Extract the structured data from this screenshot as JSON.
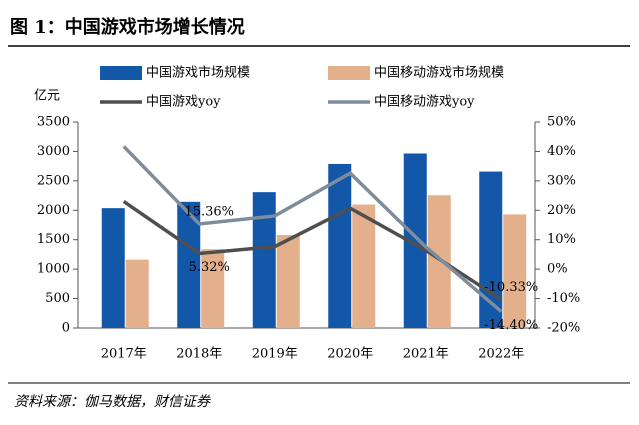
{
  "chart_data": {
    "type": "bar",
    "title": "图 1：中国游戏市场增长情况",
    "source": "资料来源：伽马数据，财信证券",
    "y_label": "亿元",
    "categories": [
      "2017年",
      "2018年",
      "2019年",
      "2020年",
      "2021年",
      "2022年"
    ],
    "series": [
      {
        "name": "中国游戏市场规模",
        "type": "bar",
        "color": "#1357a9",
        "values": [
          2036,
          2144,
          2308,
          2787,
          2965,
          2658
        ]
      },
      {
        "name": "中国移动游戏市场规模",
        "type": "bar",
        "color": "#e4b08c",
        "values": [
          1161,
          1339,
          1581,
          2097,
          2255,
          1930
        ]
      },
      {
        "name": "中国游戏yoy",
        "type": "line",
        "axis": "y2",
        "color": "#4f4f4f",
        "values": [
          23.0,
          5.32,
          7.66,
          20.71,
          6.4,
          -10.33
        ],
        "value_labels": [
          null,
          "5.32%",
          null,
          null,
          null,
          "-10.33%"
        ]
      },
      {
        "name": "中国移动游戏yoy",
        "type": "line",
        "axis": "y2",
        "color": "#7e8c9b",
        "values": [
          41.7,
          15.36,
          18.08,
          32.6,
          7.57,
          -14.4
        ],
        "value_labels": [
          null,
          "15.36%",
          null,
          null,
          null,
          "-14.40%"
        ]
      }
    ],
    "ylim": [
      0,
      3500
    ],
    "yticks": [
      0,
      500,
      1000,
      1500,
      2000,
      2500,
      3000,
      3500
    ],
    "y2lim": [
      -20,
      50
    ],
    "y2ticks": [
      {
        "value": -20,
        "label": "-20%"
      },
      {
        "value": -10,
        "label": "-10%"
      },
      {
        "value": 0,
        "label": "0%"
      },
      {
        "value": 10,
        "label": "10%"
      },
      {
        "value": 20,
        "label": "20%"
      },
      {
        "value": 30,
        "label": "30%"
      },
      {
        "value": 40,
        "label": "40%"
      },
      {
        "value": 50,
        "label": "50%"
      }
    ]
  }
}
